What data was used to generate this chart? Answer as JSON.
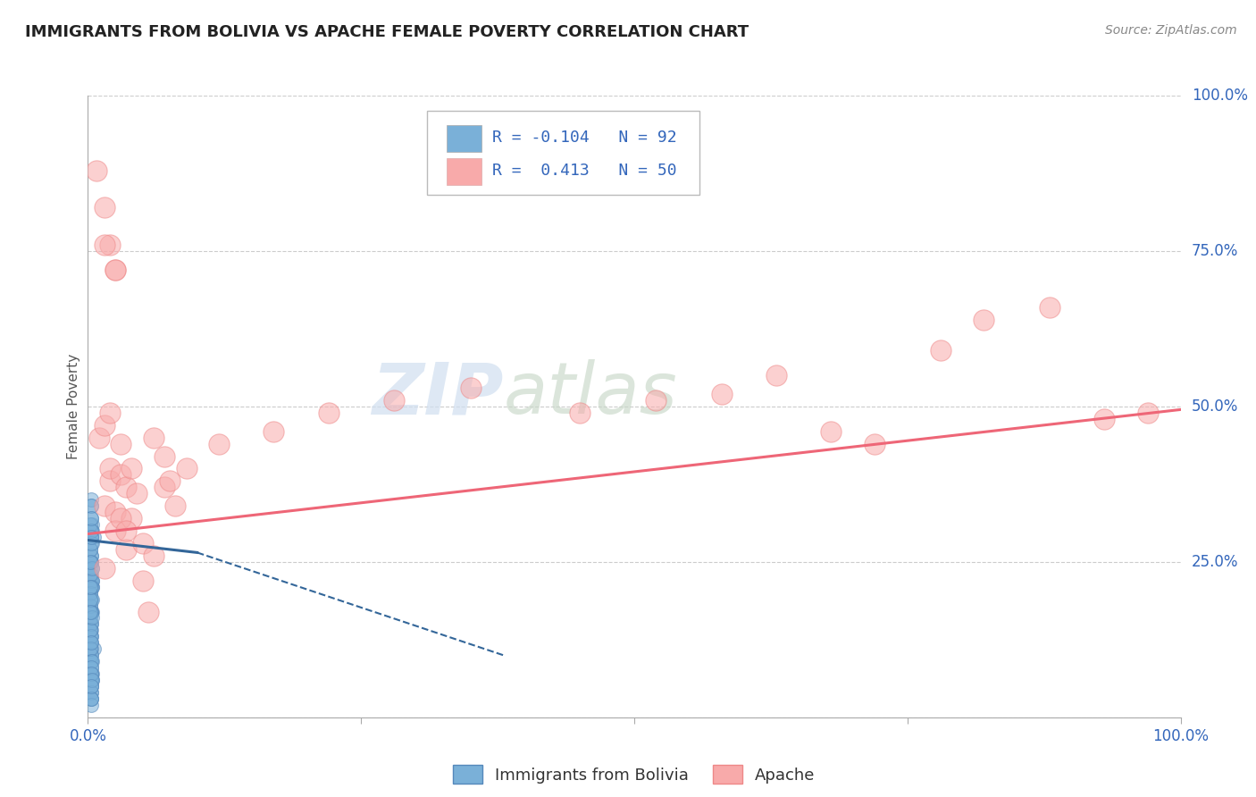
{
  "title": "IMMIGRANTS FROM BOLIVIA VS APACHE FEMALE POVERTY CORRELATION CHART",
  "source": "Source: ZipAtlas.com",
  "ylabel": "Female Poverty",
  "legend_blue_r": "-0.104",
  "legend_blue_n": "92",
  "legend_pink_r": "0.413",
  "legend_pink_n": "50",
  "legend_label_blue": "Immigrants from Bolivia",
  "legend_label_pink": "Apache",
  "xlim": [
    0,
    1
  ],
  "ylim": [
    0,
    1
  ],
  "background_color": "#ffffff",
  "watermark_line1": "ZIP",
  "watermark_line2": "atlas",
  "blue_color": "#7ab0d8",
  "blue_edge_color": "#5588bb",
  "pink_color": "#f8aaaa",
  "pink_edge_color": "#ee8888",
  "blue_line_color": "#336699",
  "pink_line_color": "#ee6677",
  "grid_color": "#cccccc",
  "title_color": "#222222",
  "axis_label_color": "#3366bb",
  "ylabel_color": "#555555",
  "blue_x": [
    0.003,
    0.004,
    0.002,
    0.005,
    0.003,
    0.004,
    0.002,
    0.003,
    0.004,
    0.003,
    0.005,
    0.002,
    0.003,
    0.002,
    0.003,
    0.004,
    0.003,
    0.002,
    0.003,
    0.003,
    0.004,
    0.003,
    0.002,
    0.004,
    0.002,
    0.003,
    0.002,
    0.004,
    0.003,
    0.003,
    0.002,
    0.003,
    0.003,
    0.004,
    0.003,
    0.002,
    0.003,
    0.003,
    0.002,
    0.003,
    0.004,
    0.003,
    0.002,
    0.003,
    0.003,
    0.004,
    0.003,
    0.002,
    0.003,
    0.003,
    0.002,
    0.003,
    0.004,
    0.003,
    0.003,
    0.002,
    0.003,
    0.003,
    0.002,
    0.003,
    0.003,
    0.002,
    0.004,
    0.003,
    0.003,
    0.002,
    0.003,
    0.003,
    0.004,
    0.003,
    0.002,
    0.003,
    0.003,
    0.002,
    0.003,
    0.003,
    0.004,
    0.003,
    0.002,
    0.003,
    0.003,
    0.002,
    0.004,
    0.003,
    0.003,
    0.002,
    0.003,
    0.003,
    0.002,
    0.003,
    0.004,
    0.003
  ],
  "blue_y": [
    0.34,
    0.3,
    0.22,
    0.29,
    0.17,
    0.24,
    0.19,
    0.14,
    0.31,
    0.26,
    0.11,
    0.23,
    0.09,
    0.15,
    0.32,
    0.28,
    0.07,
    0.2,
    0.13,
    0.25,
    0.17,
    0.3,
    0.09,
    0.22,
    0.18,
    0.35,
    0.27,
    0.21,
    0.1,
    0.15,
    0.24,
    0.29,
    0.12,
    0.06,
    0.19,
    0.14,
    0.09,
    0.23,
    0.31,
    0.17,
    0.07,
    0.26,
    0.13,
    0.22,
    0.34,
    0.21,
    0.08,
    0.16,
    0.25,
    0.05,
    0.12,
    0.3,
    0.22,
    0.11,
    0.06,
    0.2,
    0.15,
    0.04,
    0.18,
    0.1,
    0.03,
    0.27,
    0.19,
    0.09,
    0.05,
    0.23,
    0.13,
    0.32,
    0.24,
    0.07,
    0.14,
    0.21,
    0.06,
    0.11,
    0.17,
    0.28,
    0.09,
    0.04,
    0.19,
    0.08,
    0.03,
    0.25,
    0.16,
    0.07,
    0.02,
    0.21,
    0.12,
    0.03,
    0.17,
    0.29,
    0.06,
    0.05
  ],
  "pink_x": [
    0.008,
    0.015,
    0.02,
    0.025,
    0.03,
    0.02,
    0.015,
    0.01,
    0.025,
    0.035,
    0.015,
    0.02,
    0.015,
    0.03,
    0.025,
    0.02,
    0.035,
    0.04,
    0.05,
    0.06,
    0.07,
    0.09,
    0.12,
    0.17,
    0.22,
    0.28,
    0.35,
    0.45,
    0.52,
    0.58,
    0.63,
    0.68,
    0.72,
    0.78,
    0.82,
    0.88,
    0.93,
    0.97,
    0.015,
    0.025,
    0.03,
    0.035,
    0.04,
    0.045,
    0.05,
    0.055,
    0.06,
    0.07,
    0.075,
    0.08
  ],
  "pink_y": [
    0.88,
    0.82,
    0.76,
    0.72,
    0.44,
    0.38,
    0.34,
    0.45,
    0.33,
    0.27,
    0.24,
    0.4,
    0.47,
    0.39,
    0.3,
    0.49,
    0.37,
    0.32,
    0.28,
    0.26,
    0.37,
    0.4,
    0.44,
    0.46,
    0.49,
    0.51,
    0.53,
    0.49,
    0.51,
    0.52,
    0.55,
    0.46,
    0.44,
    0.59,
    0.64,
    0.66,
    0.48,
    0.49,
    0.76,
    0.72,
    0.32,
    0.3,
    0.4,
    0.36,
    0.22,
    0.17,
    0.45,
    0.42,
    0.38,
    0.34
  ],
  "blue_trend_x0": 0.0,
  "blue_trend_y0": 0.285,
  "blue_trend_x_solid_end": 0.1,
  "blue_trend_y_solid_end": 0.265,
  "blue_trend_x1": 0.38,
  "blue_trend_y1": 0.1,
  "pink_trend_x0": 0.0,
  "pink_trend_y0": 0.295,
  "pink_trend_x1": 1.0,
  "pink_trend_y1": 0.495
}
